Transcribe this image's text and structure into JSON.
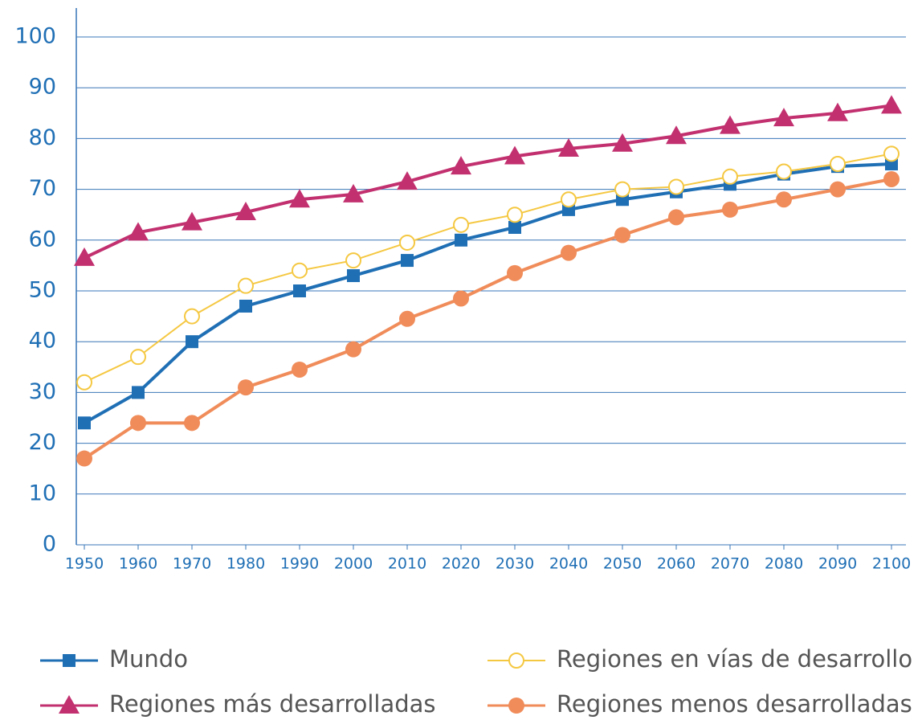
{
  "chart_data": {
    "type": "line",
    "x": [
      1950,
      1960,
      1970,
      1980,
      1990,
      2000,
      2010,
      2020,
      2030,
      2040,
      2050,
      2060,
      2070,
      2080,
      2090,
      2100
    ],
    "xlim": [
      1950,
      2100
    ],
    "xticks": [
      1950,
      1960,
      1970,
      1980,
      1990,
      2000,
      2010,
      2020,
      2030,
      2040,
      2050,
      2060,
      2070,
      2080,
      2090,
      2100
    ],
    "ylim": [
      0,
      100
    ],
    "yticks": [
      0,
      10,
      20,
      30,
      40,
      50,
      60,
      70,
      80,
      90,
      100
    ],
    "grid": true,
    "series": [
      {
        "name": "Mundo",
        "color": "#1f6fb5",
        "marker": "square",
        "values": [
          24,
          30,
          40,
          47,
          50,
          53,
          56,
          60,
          62.5,
          66,
          68,
          69.5,
          71,
          73,
          74.5,
          75
        ]
      },
      {
        "name": "Regiones en vías de desarrollo",
        "color": "#f5c842",
        "marker": "open-circle",
        "values": [
          32,
          37,
          45,
          51,
          54,
          56,
          59.5,
          63,
          65,
          68,
          70,
          70.5,
          72.5,
          73.5,
          75,
          77
        ]
      },
      {
        "name": "Regiones más desarrolladas",
        "color": "#c2306f",
        "marker": "triangle",
        "values": [
          56.5,
          61.5,
          63.5,
          65.5,
          68,
          69,
          71.5,
          74.5,
          76.5,
          78,
          79,
          80.5,
          82.5,
          84,
          85,
          86.5
        ]
      },
      {
        "name": "Regiones menos desarrolladas",
        "color": "#f08c5a",
        "marker": "circle",
        "values": [
          17,
          24,
          24,
          31,
          34.5,
          38.5,
          44.5,
          48.5,
          53.5,
          57.5,
          61,
          64.5,
          66,
          68,
          70,
          72
        ]
      }
    ]
  }
}
